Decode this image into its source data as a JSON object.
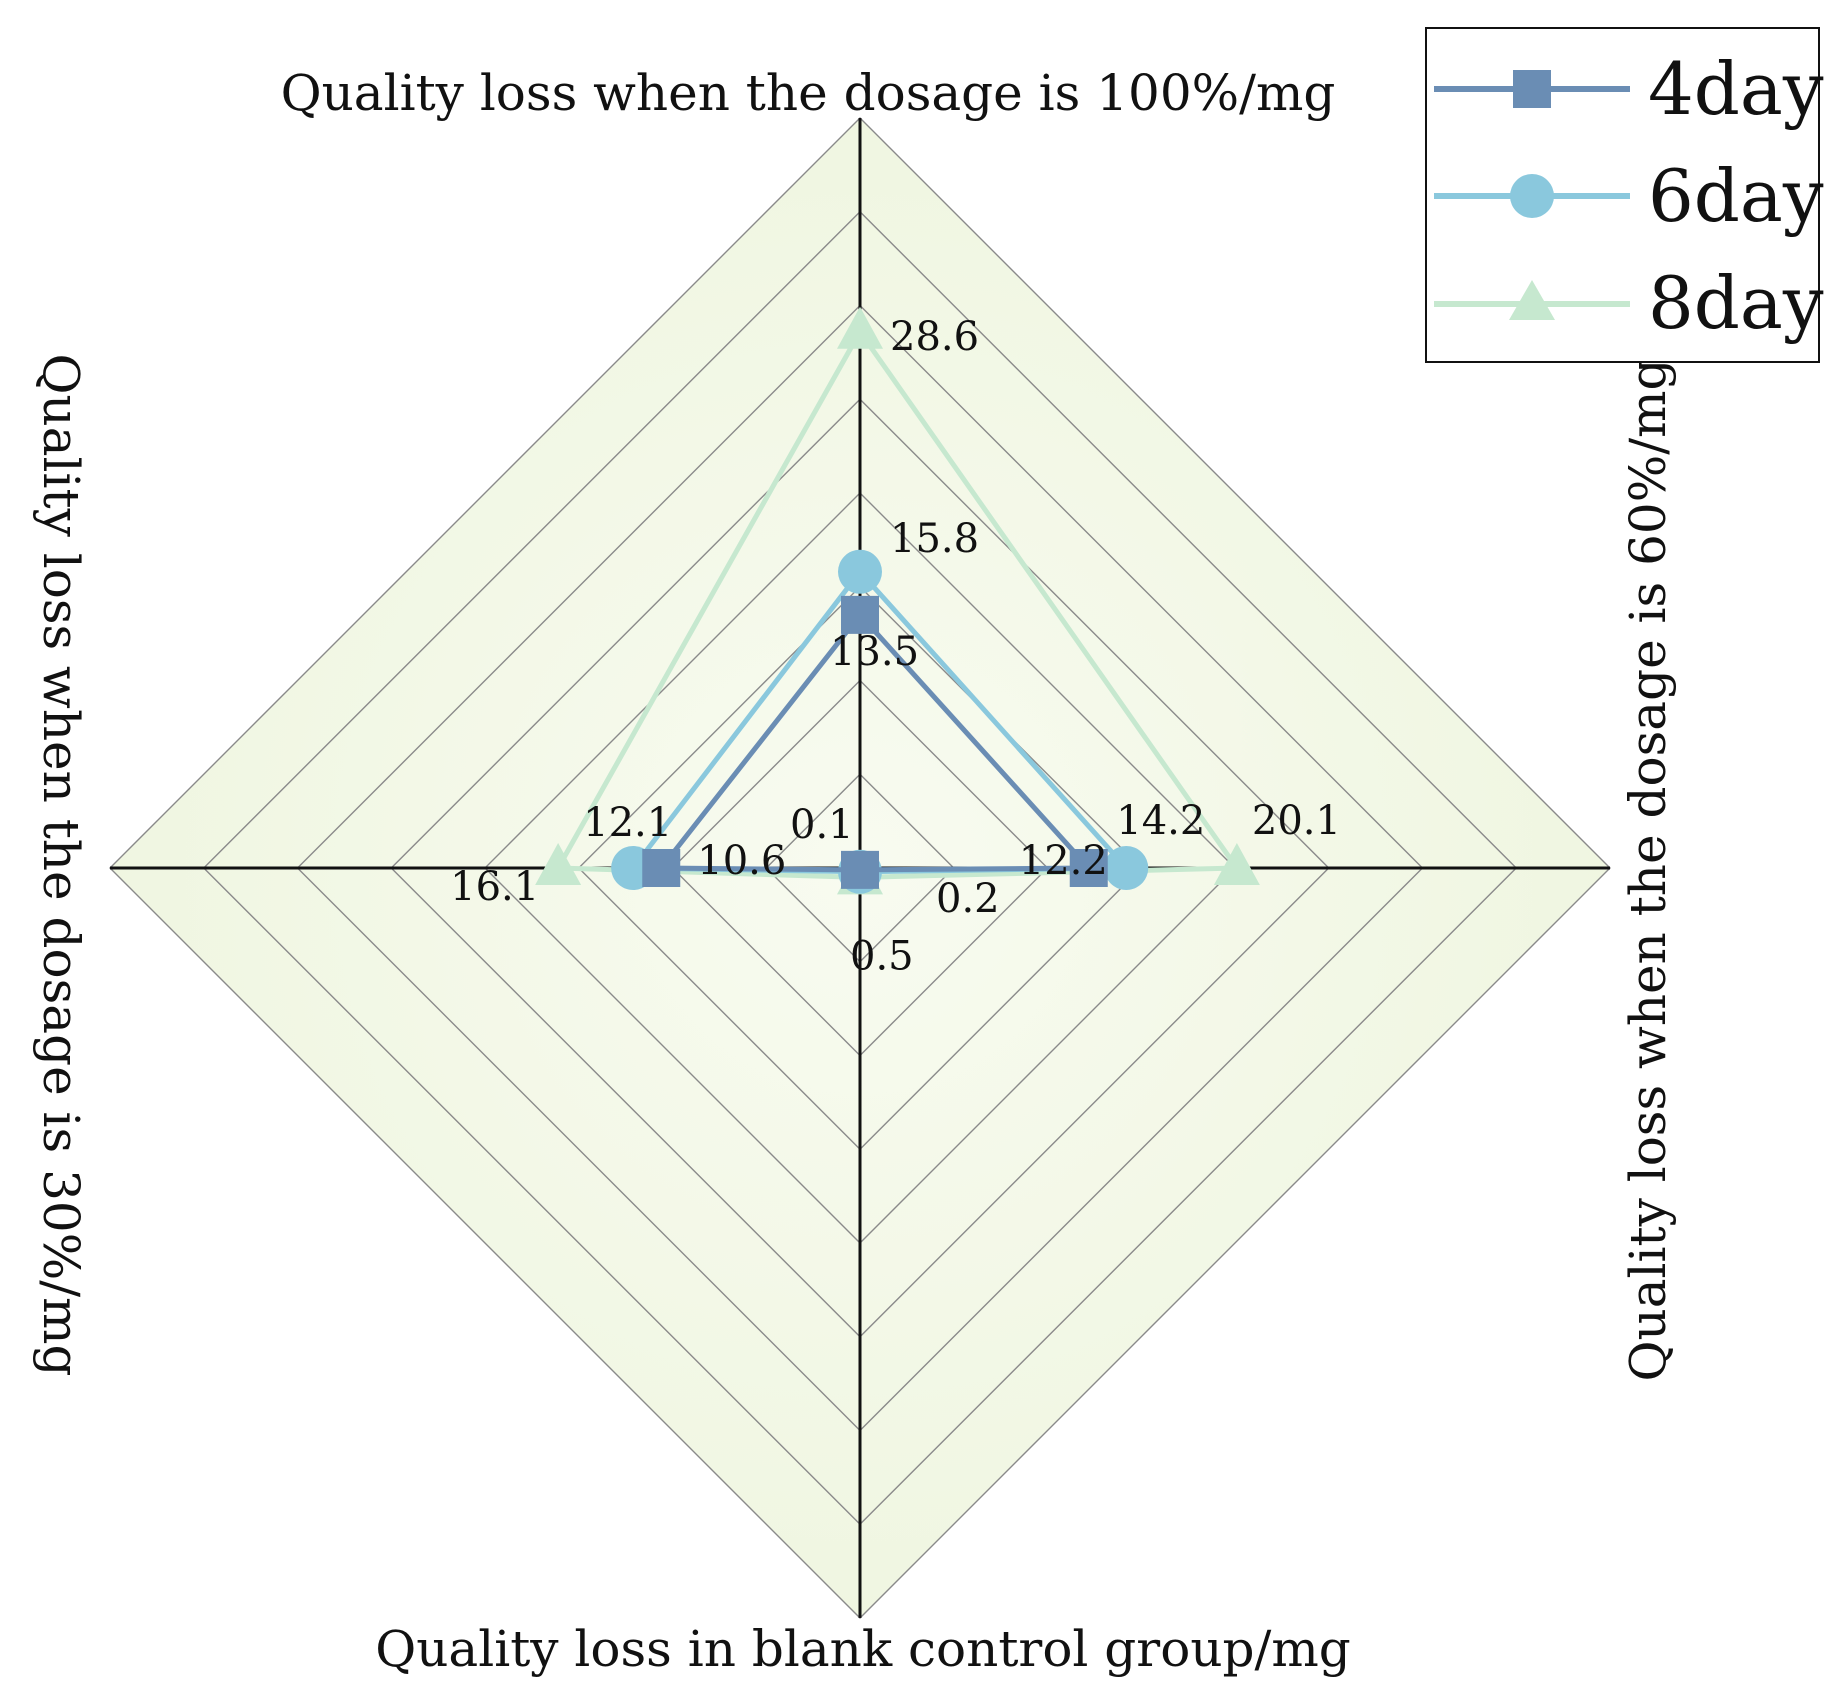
{
  "chart_data": {
    "type": "radar",
    "title": "",
    "axes": [
      "Quality loss when the dosage is 100%/mg",
      "Quality loss when the dosage is 60%/mg",
      "Quality loss in blank control group/mg",
      "Quality loss when the dosage is 30%/mg"
    ],
    "rmax": 40,
    "rings": 8,
    "series": [
      {
        "name": "4day",
        "marker": "square",
        "color": "#6a8db4",
        "values": [
          13.5,
          12.2,
          0.1,
          10.6
        ]
      },
      {
        "name": "6day",
        "marker": "circle",
        "color": "#8ac8dd",
        "values": [
          15.8,
          14.2,
          0.2,
          12.1
        ]
      },
      {
        "name": "8day",
        "marker": "triangle",
        "color": "#c6e8cf",
        "values": [
          28.6,
          20.1,
          0.5,
          16.1
        ]
      }
    ],
    "colors": {
      "fill": "#f4f8e8",
      "grid": "#8a8a8a",
      "axis": "#111111"
    }
  }
}
